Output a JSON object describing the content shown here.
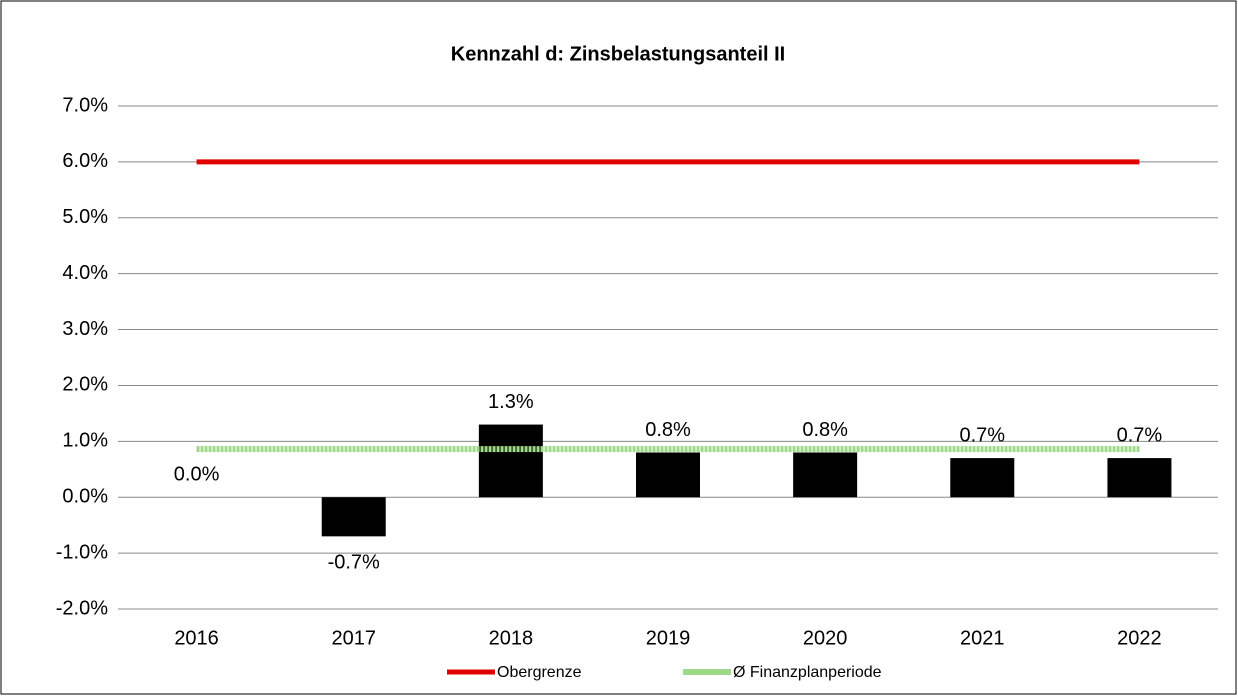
{
  "chart_data": {
    "type": "bar",
    "title": "Kennzahl d: Zinsbelastungsanteil II",
    "categories": [
      "2016",
      "2017",
      "2018",
      "2019",
      "2020",
      "2021",
      "2022"
    ],
    "values": [
      0.0,
      -0.7,
      1.3,
      0.8,
      0.8,
      0.7,
      0.7
    ],
    "value_labels": [
      "0.0%",
      "-0.7%",
      "1.3%",
      "0.8%",
      "0.8%",
      "0.7%",
      "0.7%"
    ],
    "color": "#000000",
    "series": [
      {
        "name": "Obergrenze",
        "color": "#e00000",
        "values": [
          6,
          6,
          6,
          6,
          6,
          6,
          6
        ]
      },
      {
        "name": "Ø Finanzplanperiode",
        "color": "#9ed98a",
        "values": [
          0.86,
          0.86,
          0.86,
          0.86,
          0.86,
          0.86,
          0.86
        ]
      }
    ],
    "ylim": [
      -2,
      7
    ],
    "yticks": [
      {
        "value": -2,
        "label": "-2.0%"
      },
      {
        "value": -1,
        "label": "-1.0%"
      },
      {
        "value": 0,
        "label": "0.0%"
      },
      {
        "value": 1,
        "label": "1.0%"
      },
      {
        "value": 2,
        "label": "2.0%"
      },
      {
        "value": 3,
        "label": "3.0%"
      },
      {
        "value": 4,
        "label": "4.0%"
      },
      {
        "value": 5,
        "label": "5.0%"
      },
      {
        "value": 6,
        "label": "6.0%"
      },
      {
        "value": 7,
        "label": "7.0%"
      }
    ],
    "grid": true,
    "legend": "bottom"
  }
}
